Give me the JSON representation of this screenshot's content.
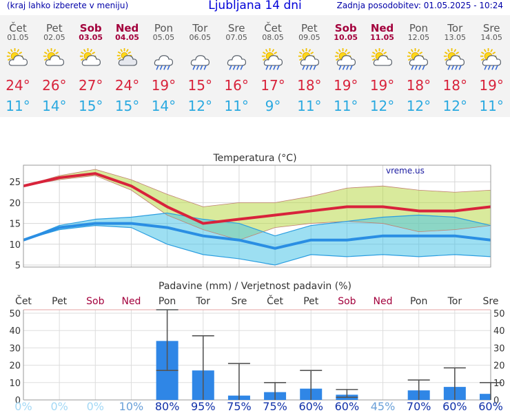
{
  "header": {
    "note": "(kraj lahko izberete v meniju)",
    "title": "Ljubljana 14 dni",
    "updated": "Zadnja posodobitev: 01.05.2025 - 10:24"
  },
  "colors": {
    "max": "#d8233b",
    "min": "#2aa9e0",
    "weekend": "#a3003c",
    "bar": "#2f86e6",
    "prob_low": "#a3d8f5",
    "prob_high": "#1030a8"
  },
  "days": [
    {
      "name": "Čet",
      "date": "01.05",
      "weekend": false,
      "icon": "partly-sunny-icon",
      "max": "24°",
      "min": "11°"
    },
    {
      "name": "Pet",
      "date": "02.05",
      "weekend": false,
      "icon": "partly-sunny-icon",
      "max": "26°",
      "min": "14°"
    },
    {
      "name": "Sob",
      "date": "03.05",
      "weekend": true,
      "icon": "partly-sunny-icon",
      "max": "27°",
      "min": "15°"
    },
    {
      "name": "Ned",
      "date": "04.05",
      "weekend": true,
      "icon": "cloudy-sun-icon",
      "max": "24°",
      "min": "15°"
    },
    {
      "name": "Pon",
      "date": "05.05",
      "weekend": false,
      "icon": "rain-icon",
      "max": "19°",
      "min": "14°"
    },
    {
      "name": "Tor",
      "date": "06.05",
      "weekend": false,
      "icon": "rain-icon",
      "max": "15°",
      "min": "12°"
    },
    {
      "name": "Sre",
      "date": "07.05",
      "weekend": false,
      "icon": "rain-icon",
      "max": "16°",
      "min": "11°"
    },
    {
      "name": "Čet",
      "date": "08.05",
      "weekend": false,
      "icon": "sun-rain-icon",
      "max": "17°",
      "min": "9°"
    },
    {
      "name": "Pet",
      "date": "09.05",
      "weekend": false,
      "icon": "sun-rain-icon",
      "max": "18°",
      "min": "11°"
    },
    {
      "name": "Sob",
      "date": "10.05",
      "weekend": true,
      "icon": "sun-rain-icon",
      "max": "19°",
      "min": "11°"
    },
    {
      "name": "Ned",
      "date": "11.05",
      "weekend": true,
      "icon": "partly-sunny-icon",
      "max": "19°",
      "min": "12°"
    },
    {
      "name": "Pon",
      "date": "12.05",
      "weekend": false,
      "icon": "sun-rain-icon",
      "max": "18°",
      "min": "12°"
    },
    {
      "name": "Tor",
      "date": "13.05",
      "weekend": false,
      "icon": "sun-rain-icon",
      "max": "18°",
      "min": "12°"
    },
    {
      "name": "Sre",
      "date": "14.05",
      "weekend": false,
      "icon": "sun-rain-icon",
      "max": "19°",
      "min": "11°"
    }
  ],
  "chart_data": [
    {
      "type": "line",
      "title": "Temperatura (°C)",
      "watermark": "vreme.us",
      "categories": [
        "01.05",
        "02.05",
        "03.05",
        "04.05",
        "05.05",
        "06.05",
        "07.05",
        "08.05",
        "09.05",
        "10.05",
        "11.05",
        "12.05",
        "13.05",
        "14.05"
      ],
      "ylim": [
        4.5,
        29
      ],
      "yticks": [
        5,
        10,
        15,
        20,
        25
      ],
      "grid": true,
      "series": [
        {
          "name": "max",
          "values": [
            24,
            26,
            27,
            24,
            19,
            15,
            16,
            17,
            18,
            19,
            19,
            18,
            18,
            19
          ]
        },
        {
          "name": "max_upper",
          "values": [
            24,
            26.5,
            28,
            25.5,
            22,
            19,
            20,
            20,
            21.5,
            23.5,
            24,
            23,
            22.5,
            23
          ]
        },
        {
          "name": "max_lower",
          "values": [
            24,
            25.5,
            26.5,
            23,
            17,
            13.5,
            11,
            14,
            15,
            15.5,
            15,
            13,
            13.5,
            14.5
          ]
        },
        {
          "name": "min",
          "values": [
            11,
            14,
            15,
            15,
            14,
            12,
            11,
            9,
            11,
            11,
            12,
            12,
            12,
            11
          ]
        },
        {
          "name": "min_upper",
          "values": [
            11,
            14.5,
            16,
            16.5,
            17.5,
            16,
            15,
            12,
            14.5,
            15.5,
            16.5,
            17,
            16.5,
            14.5
          ]
        },
        {
          "name": "min_lower",
          "values": [
            11,
            13.5,
            14.5,
            14,
            10,
            7.5,
            6.5,
            5,
            7.5,
            7,
            7.5,
            7,
            7.5,
            7
          ]
        }
      ]
    },
    {
      "type": "bar",
      "title": "Padavine (mm) / Verjetnost padavin (%)",
      "categories": [
        "Čet",
        "Pet",
        "Sob",
        "Ned",
        "Pon",
        "Tor",
        "Sre",
        "Čet",
        "Pet",
        "Sob",
        "Ned",
        "Pon",
        "Tor",
        "Sre"
      ],
      "weekend": [
        false,
        false,
        true,
        true,
        false,
        false,
        false,
        false,
        false,
        true,
        true,
        false,
        false,
        false
      ],
      "ylim": [
        0,
        52
      ],
      "yticks": [
        0,
        10,
        20,
        30,
        40,
        50
      ],
      "values": [
        0,
        0,
        0,
        0,
        34,
        17,
        2.5,
        4.5,
        6.5,
        3,
        0,
        5.5,
        7.5,
        3.5
      ],
      "error_low": [
        0,
        0,
        0,
        0,
        17,
        0,
        0,
        0,
        0,
        1.5,
        0,
        0,
        0,
        0
      ],
      "error_high": [
        0,
        0,
        0,
        0,
        52,
        37,
        21,
        10,
        17,
        6,
        0,
        11.5,
        18.5,
        10
      ],
      "probability": [
        0,
        0,
        0,
        10,
        80,
        95,
        75,
        75,
        60,
        60,
        45,
        70,
        60,
        60
      ],
      "probability_labels": [
        "0%",
        "0%",
        "0%",
        "10%",
        "80%",
        "95%",
        "75%",
        "75%",
        "60%",
        "60%",
        "45%",
        "70%",
        "60%",
        "60%"
      ]
    }
  ]
}
